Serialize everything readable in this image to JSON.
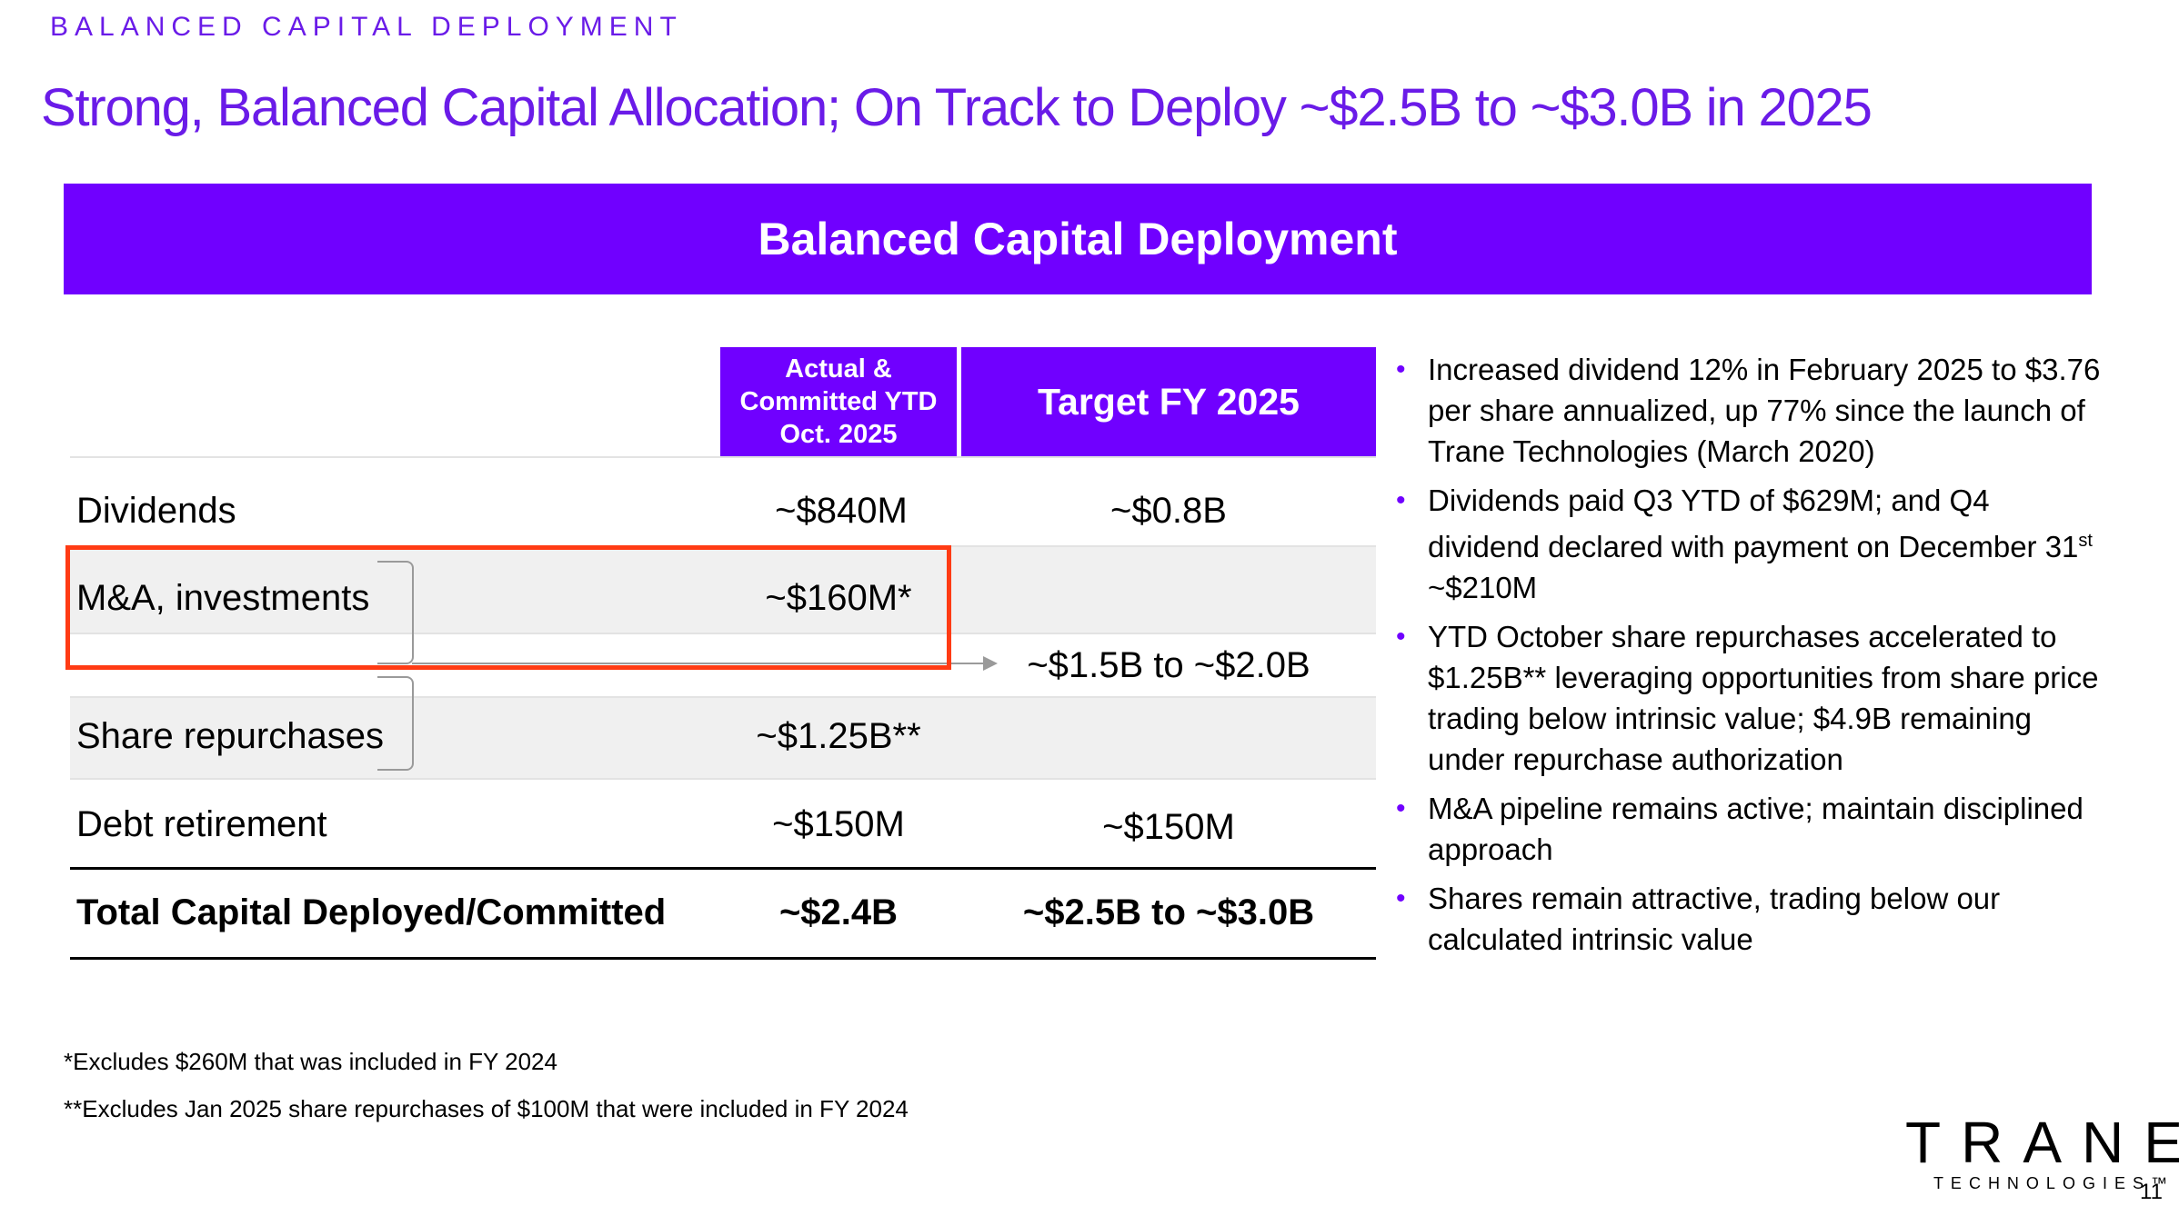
{
  "kicker": "BALANCED CAPITAL DEPLOYMENT",
  "headline": "Strong, Balanced Capital Allocation; On Track to Deploy ~$2.5B to ~$3.0B in 2025",
  "banner": "Balanced Capital Deployment",
  "table": {
    "col_actual": "Actual & Committed YTD Oct. 2025",
    "col_target": "Target FY 2025",
    "rows": [
      {
        "label": "Dividends",
        "actual": "~$840M",
        "target": "~$0.8B"
      },
      {
        "label": "M&A, investments",
        "actual": "~$160M*",
        "target": ""
      },
      {
        "label": "",
        "actual": "",
        "target": "~$1.5B to ~$2.0B"
      },
      {
        "label": "Share repurchases",
        "actual": "~$1.25B**",
        "target": ""
      },
      {
        "label": "Debt retirement",
        "actual": "~$150M",
        "target": "~$150M"
      }
    ],
    "total": {
      "label": "Total Capital Deployed/Committed",
      "actual": "~$2.4B",
      "target": "~$2.5B to ~$3.0B"
    }
  },
  "bullets": [
    {
      "text": "Increased dividend 12% in February 2025 to $3.76 per share annualized, up 77% since the launch of Trane Technologies (March 2020)"
    },
    {
      "text": "Dividends paid Q3 YTD of $629M; and Q4 dividend declared with payment on December 31",
      "sup": "st",
      "after": " ~$210M"
    },
    {
      "text": "YTD October share repurchases accelerated to $1.25B** leveraging opportunities from share price trading below intrinsic value; $4.9B remaining under repurchase authorization"
    },
    {
      "text": "M&A pipeline remains active; maintain disciplined approach"
    },
    {
      "text": "Shares remain attractive, trading below our calculated intrinsic value"
    }
  ],
  "footnotes": [
    "*Excludes $260M that was included in FY 2024",
    "**Excludes Jan 2025 share repurchases of $100M that were included in FY 2024"
  ],
  "logo": {
    "brand": "TRANE",
    "sub": "TECHNOLOGIES",
    "tm": "™"
  },
  "page_number": "11",
  "colors": {
    "accent": "#7000ff",
    "title": "#6a1be8",
    "highlight": "#ff3b14"
  }
}
